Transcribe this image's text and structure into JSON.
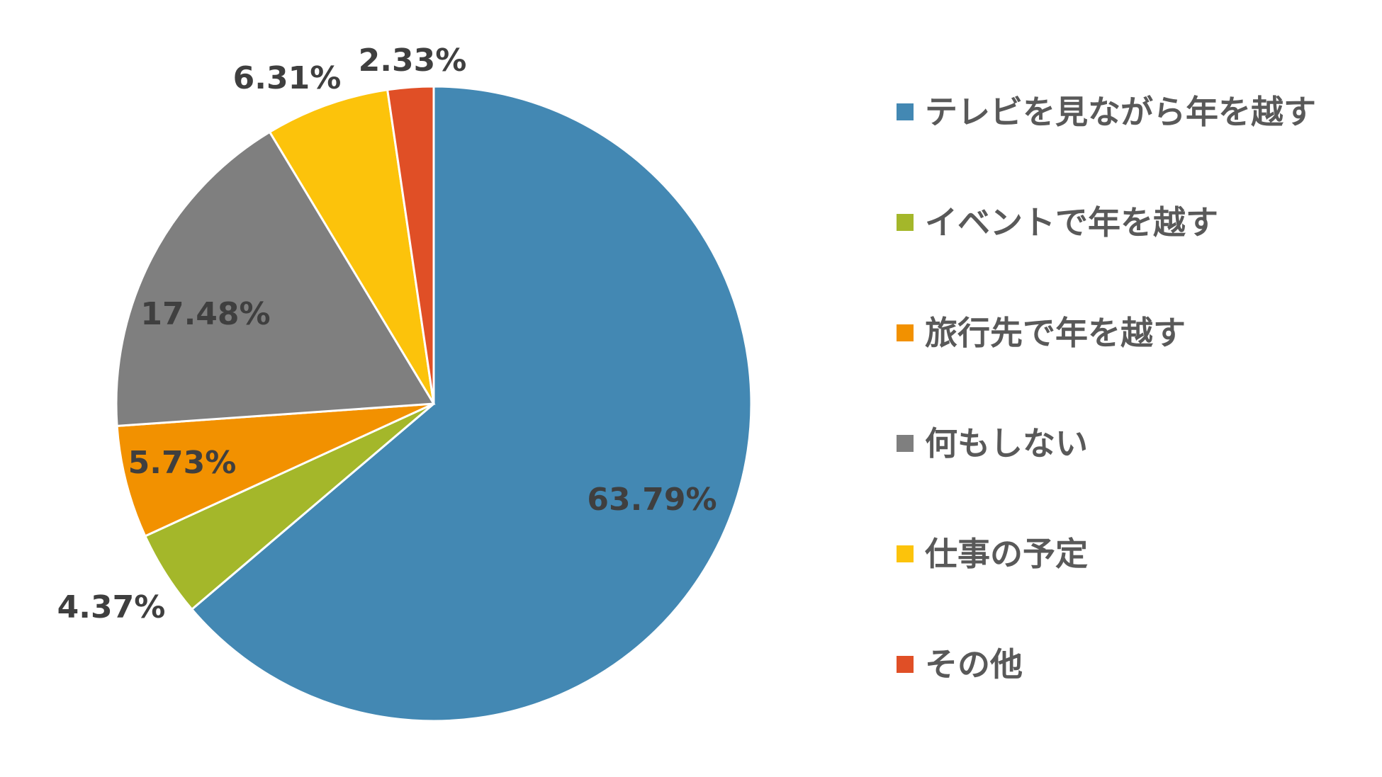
{
  "chart_data": {
    "type": "pie",
    "title": "",
    "slices": [
      {
        "label": "テレビを見ながら年を越す",
        "value": 63.79,
        "display": "63.79%",
        "color": "#4388b3"
      },
      {
        "label": "イベントで年を越す",
        "value": 4.37,
        "display": "4.37%",
        "color": "#a4b72a"
      },
      {
        "label": "旅行先で年を越す",
        "value": 5.73,
        "display": "5.73%",
        "color": "#f29100"
      },
      {
        "label": "何もしない",
        "value": 17.48,
        "display": "17.48%",
        "color": "#7f7f7f"
      },
      {
        "label": "仕事の予定",
        "value": 6.31,
        "display": "6.31%",
        "color": "#fcc30b"
      },
      {
        "label": "その他",
        "value": 2.33,
        "display": "2.33%",
        "color": "#e04f26"
      }
    ],
    "start_angle": "12 o'clock",
    "direction": "clockwise",
    "legend_position": "right"
  }
}
